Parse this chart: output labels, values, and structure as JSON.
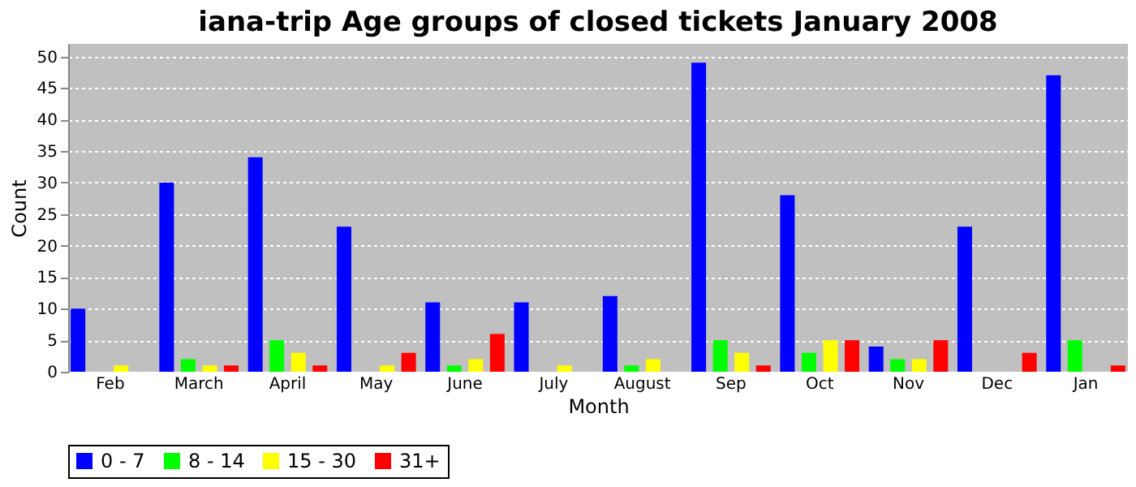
{
  "chart_data": {
    "type": "bar",
    "title": "iana-trip Age groups of closed tickets January 2008",
    "xlabel": "Month",
    "ylabel": "Count",
    "categories": [
      "Feb",
      "March",
      "April",
      "May",
      "June",
      "July",
      "August",
      "Sep",
      "Oct",
      "Nov",
      "Dec",
      "Jan"
    ],
    "series": [
      {
        "name": "0 - 7",
        "color": "#0000ff",
        "values": [
          10,
          30,
          34,
          23,
          11,
          11,
          12,
          49,
          28,
          4,
          23,
          47
        ]
      },
      {
        "name": "8 - 14",
        "color": "#00ff00",
        "values": [
          0,
          2,
          5,
          0,
          1,
          0,
          1,
          5,
          3,
          2,
          0,
          5
        ]
      },
      {
        "name": "15 - 30",
        "color": "#ffff00",
        "values": [
          1,
          1,
          3,
          1,
          2,
          1,
          2,
          3,
          5,
          2,
          0,
          0
        ]
      },
      {
        "name": "31+",
        "color": "#ff0000",
        "values": [
          0,
          1,
          1,
          3,
          6,
          0,
          0,
          1,
          5,
          5,
          3,
          1
        ]
      }
    ],
    "ylim": [
      0,
      52
    ],
    "yticks": [
      0,
      5,
      10,
      15,
      20,
      25,
      30,
      35,
      40,
      45,
      50
    ],
    "grid": "y",
    "legend": "bottom"
  }
}
